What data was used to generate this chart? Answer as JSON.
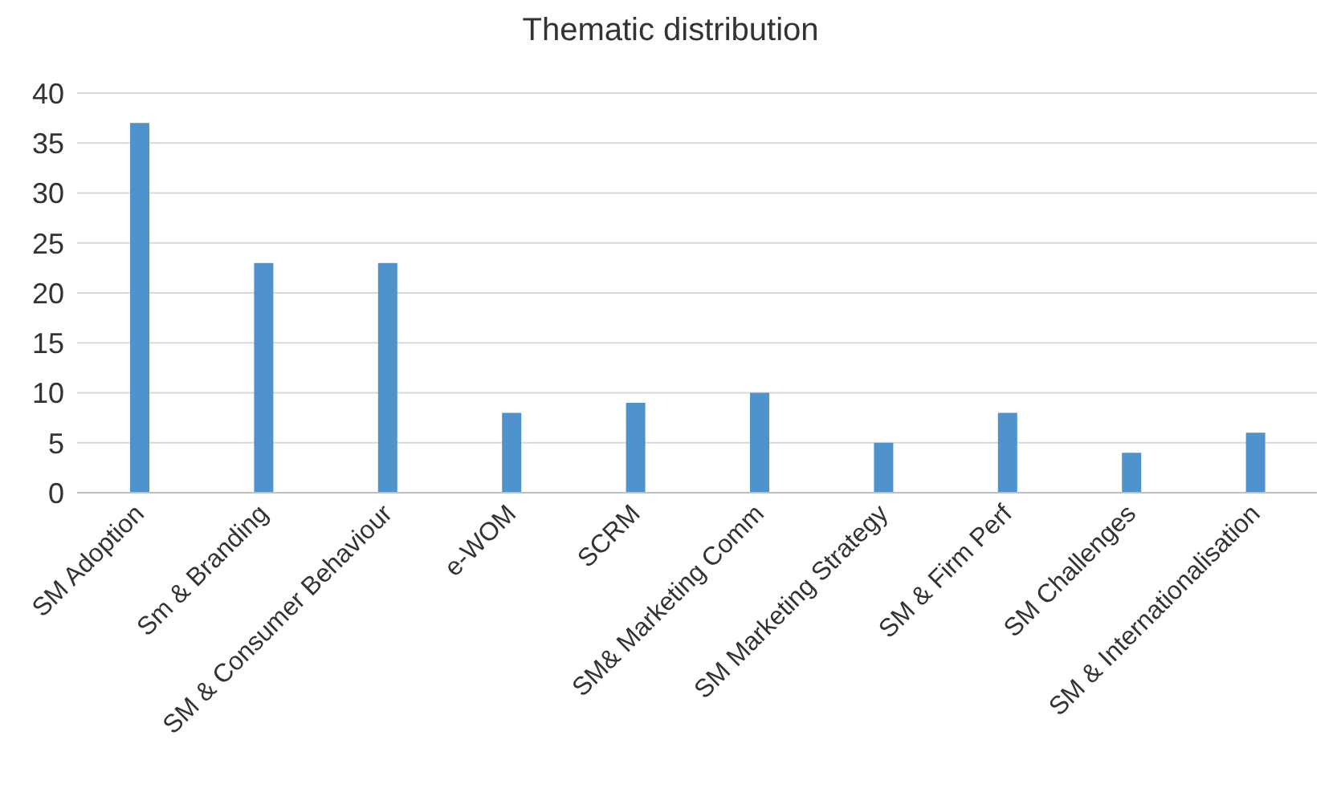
{
  "chart_data": {
    "type": "bar",
    "title": "Thematic distribution",
    "categories": [
      "SM Adoption",
      "Sm & Branding",
      "SM & Consumer Behaviour",
      "e-WOM",
      "SCRM",
      "SM& Marketing Comm",
      "SM Marketing Strategy",
      "SM & Firm Perf",
      "SM Challenges",
      "SM & Internationalisation"
    ],
    "values": [
      37,
      23,
      23,
      8,
      9,
      10,
      5,
      8,
      4,
      6
    ],
    "color": "#4f92cc",
    "ylim": [
      0,
      40
    ],
    "yticks": [
      0,
      5,
      10,
      15,
      20,
      25,
      30,
      35,
      40
    ],
    "grid": "y"
  }
}
